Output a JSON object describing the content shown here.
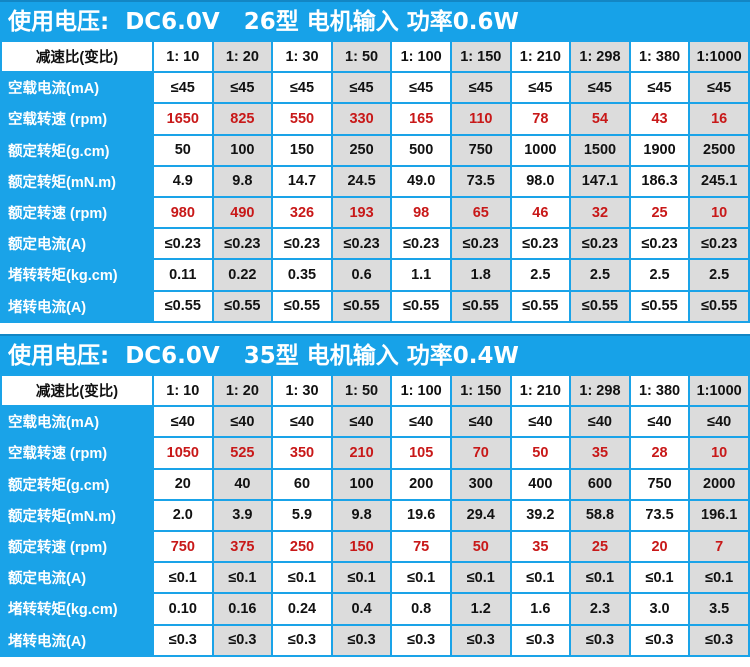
{
  "colors": {
    "header_blue": "#17a2e8",
    "grid_blue": "#1aa3e8",
    "stripe_gray": "#dcdcdc",
    "speed_red": "#c81818"
  },
  "blocks": [
    {
      "title": "使用电压:  DC6.0V   26型 电机输入 功率0.6W",
      "rows": [
        {
          "label": "减速比(变比)",
          "red": false,
          "values": [
            "1: 10",
            "1: 20",
            "1: 30",
            "1: 50",
            "1: 100",
            "1: 150",
            "1: 210",
            "1: 298",
            "1: 380",
            "1:1000"
          ]
        },
        {
          "label": "空载电流(mA)",
          "red": false,
          "values": [
            "≤45",
            "≤45",
            "≤45",
            "≤45",
            "≤45",
            "≤45",
            "≤45",
            "≤45",
            "≤45",
            "≤45"
          ]
        },
        {
          "label": "空载转速 (rpm)",
          "red": true,
          "values": [
            "1650",
            "825",
            "550",
            "330",
            "165",
            "110",
            "78",
            "54",
            "43",
            "16"
          ]
        },
        {
          "label": "额定转矩(g.cm)",
          "red": false,
          "values": [
            "50",
            "100",
            "150",
            "250",
            "500",
            "750",
            "1000",
            "1500",
            "1900",
            "2500"
          ]
        },
        {
          "label": "额定转矩(mN.m)",
          "red": false,
          "values": [
            "4.9",
            "9.8",
            "14.7",
            "24.5",
            "49.0",
            "73.5",
            "98.0",
            "147.1",
            "186.3",
            "245.1"
          ]
        },
        {
          "label": "额定转速 (rpm)",
          "red": true,
          "values": [
            "980",
            "490",
            "326",
            "193",
            "98",
            "65",
            "46",
            "32",
            "25",
            "10"
          ]
        },
        {
          "label": "额定电流(A)",
          "red": false,
          "values": [
            "≤0.23",
            "≤0.23",
            "≤0.23",
            "≤0.23",
            "≤0.23",
            "≤0.23",
            "≤0.23",
            "≤0.23",
            "≤0.23",
            "≤0.23"
          ]
        },
        {
          "label": "堵转转矩(kg.cm)",
          "red": false,
          "values": [
            "0.11",
            "0.22",
            "0.35",
            "0.6",
            "1.1",
            "1.8",
            "2.5",
            "2.5",
            "2.5",
            "2.5"
          ]
        },
        {
          "label": "堵转电流(A)",
          "red": false,
          "values": [
            "≤0.55",
            "≤0.55",
            "≤0.55",
            "≤0.55",
            "≤0.55",
            "≤0.55",
            "≤0.55",
            "≤0.55",
            "≤0.55",
            "≤0.55"
          ]
        }
      ]
    },
    {
      "title": "使用电压:  DC6.0V   35型 电机输入 功率0.4W",
      "rows": [
        {
          "label": "减速比(变比)",
          "red": false,
          "values": [
            "1: 10",
            "1: 20",
            "1: 30",
            "1: 50",
            "1: 100",
            "1: 150",
            "1: 210",
            "1: 298",
            "1: 380",
            "1:1000"
          ]
        },
        {
          "label": "空载电流(mA)",
          "red": false,
          "values": [
            "≤40",
            "≤40",
            "≤40",
            "≤40",
            "≤40",
            "≤40",
            "≤40",
            "≤40",
            "≤40",
            "≤40"
          ]
        },
        {
          "label": "空载转速 (rpm)",
          "red": true,
          "values": [
            "1050",
            "525",
            "350",
            "210",
            "105",
            "70",
            "50",
            "35",
            "28",
            "10"
          ]
        },
        {
          "label": "额定转矩(g.cm)",
          "red": false,
          "values": [
            "20",
            "40",
            "60",
            "100",
            "200",
            "300",
            "400",
            "600",
            "750",
            "2000"
          ]
        },
        {
          "label": "额定转矩(mN.m)",
          "red": false,
          "values": [
            "2.0",
            "3.9",
            "5.9",
            "9.8",
            "19.6",
            "29.4",
            "39.2",
            "58.8",
            "73.5",
            "196.1"
          ]
        },
        {
          "label": "额定转速 (rpm)",
          "red": true,
          "values": [
            "750",
            "375",
            "250",
            "150",
            "75",
            "50",
            "35",
            "25",
            "20",
            "7"
          ]
        },
        {
          "label": "额定电流(A)",
          "red": false,
          "values": [
            "≤0.1",
            "≤0.1",
            "≤0.1",
            "≤0.1",
            "≤0.1",
            "≤0.1",
            "≤0.1",
            "≤0.1",
            "≤0.1",
            "≤0.1"
          ]
        },
        {
          "label": "堵转转矩(kg.cm)",
          "red": false,
          "values": [
            "0.10",
            "0.16",
            "0.24",
            "0.4",
            "0.8",
            "1.2",
            "1.6",
            "2.3",
            "3.0",
            "3.5"
          ]
        },
        {
          "label": "堵转电流(A)",
          "red": false,
          "values": [
            "≤0.3",
            "≤0.3",
            "≤0.3",
            "≤0.3",
            "≤0.3",
            "≤0.3",
            "≤0.3",
            "≤0.3",
            "≤0.3",
            "≤0.3"
          ]
        }
      ]
    }
  ]
}
